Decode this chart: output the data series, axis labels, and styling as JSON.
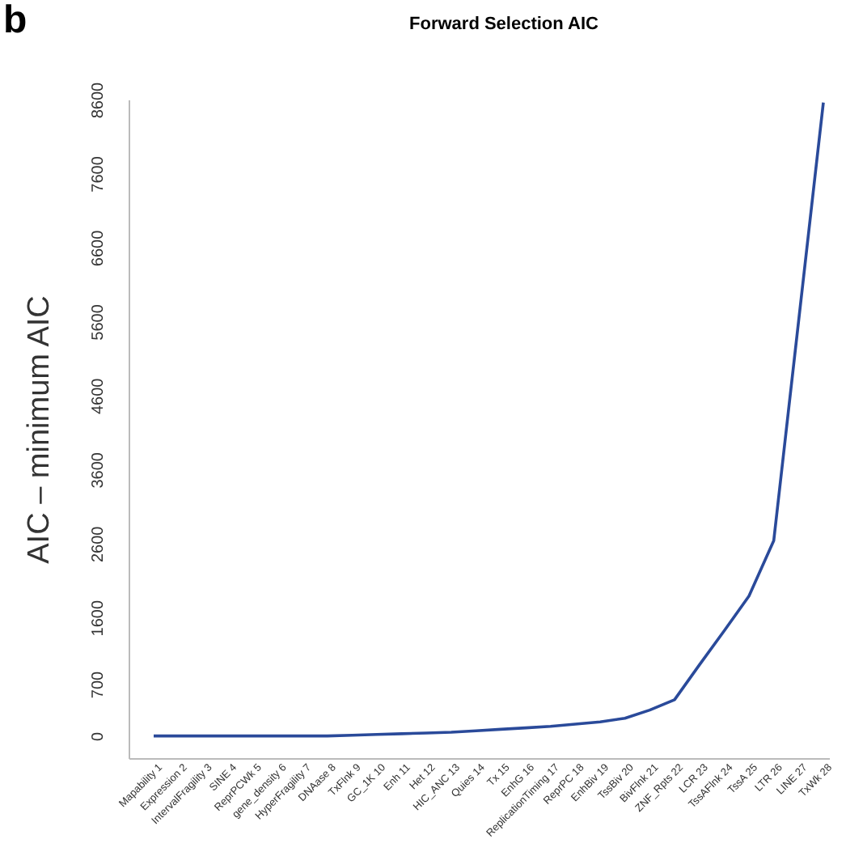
{
  "chart_data": {
    "type": "line",
    "title": "Forward Selection AIC",
    "ylabel": "AIC – minimum AIC",
    "annotations": [
      "b"
    ],
    "categories": [
      "Mapability 1",
      "Expression 2",
      "IntervalFragility 3",
      "SINE 4",
      "ReprPCWk 5",
      "gene_density 6",
      "HyperFragility 7",
      "DNAase 8",
      "TxFlnk 9",
      "GC_1K 10",
      "Enh 11",
      "Het 12",
      "HIC_ANC 13",
      "Quies 14",
      "Tx 15",
      "EnhG 16",
      "ReplicationTiming 17",
      "ReprPC 18",
      "EnhBiv 19",
      "TssBiv 20",
      "BivFlnk 21",
      "ZNF_Rpts 22",
      "LCR 23",
      "TssAFlnk 24",
      "TssA 25",
      "LTR 26",
      "LINE 27",
      "TxWk 28"
    ],
    "series": [
      {
        "color": "#2a4a9a",
        "values": [
          10,
          10,
          10,
          10,
          10,
          10,
          10,
          10,
          20,
          30,
          40,
          50,
          60,
          80,
          100,
          120,
          140,
          170,
          200,
          250,
          360,
          500,
          970,
          1430,
          1900,
          2650,
          5610,
          8570
        ]
      }
    ],
    "ylim": [
      -300,
      8600
    ],
    "yticks": [
      0,
      700,
      1600,
      2600,
      3600,
      4600,
      5600,
      6600,
      7600,
      8600
    ],
    "grid": false,
    "marker": "none",
    "line_style": "solid"
  }
}
